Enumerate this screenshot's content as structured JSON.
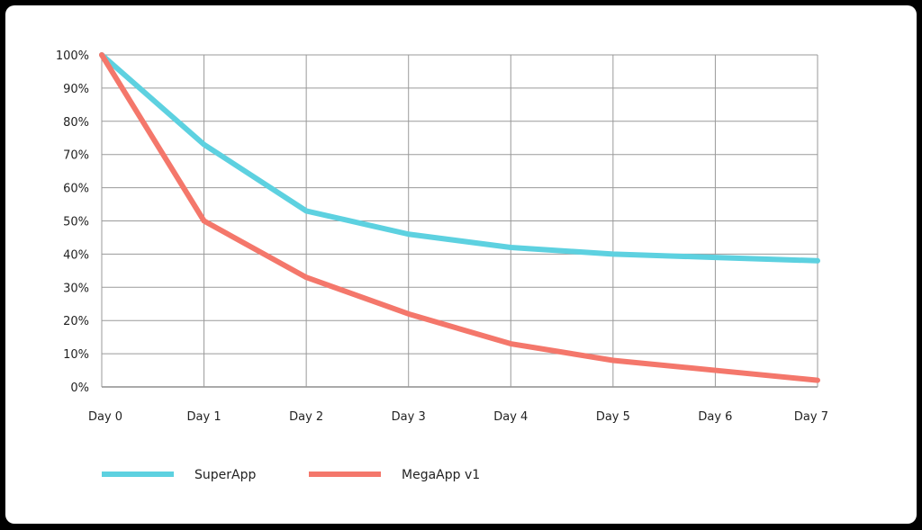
{
  "chart_data": {
    "type": "line",
    "title": "",
    "xlabel": "",
    "ylabel": "",
    "categories": [
      "Day 0",
      "Day 1",
      "Day 2",
      "Day 3",
      "Day 4",
      "Day 5",
      "Day 6",
      "Day 7"
    ],
    "yticks": [
      "0%",
      "10%",
      "20%",
      "30%",
      "40%",
      "50%",
      "60%",
      "70%",
      "80%",
      "90%",
      "100%"
    ],
    "ylim": [
      0,
      100
    ],
    "grid": true,
    "legend_position": "bottom-left",
    "series": [
      {
        "name": "SuperApp",
        "color": "#5dd1e0",
        "values": [
          100,
          73,
          53,
          46,
          42,
          40,
          39,
          38
        ]
      },
      {
        "name": "MegaApp v1",
        "color": "#f4776b",
        "values": [
          100,
          50,
          33,
          22,
          13,
          8,
          5,
          2
        ]
      }
    ]
  }
}
